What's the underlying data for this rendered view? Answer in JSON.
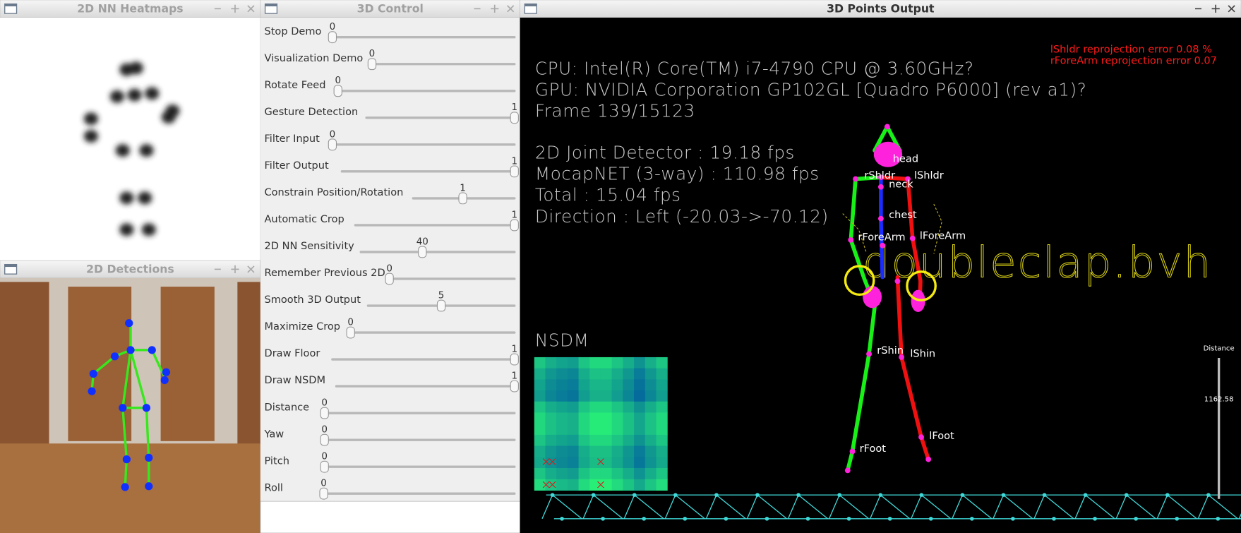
{
  "windows": {
    "heatmaps": {
      "title": "2D NN Heatmaps"
    },
    "detections": {
      "title": "2D Detections"
    },
    "control": {
      "title": "3D Control",
      "sliders": [
        {
          "label": "Stop Demo",
          "value": 0
        },
        {
          "label": "Visualization Demo",
          "value": 0
        },
        {
          "label": "Rotate Feed",
          "value": 0
        },
        {
          "label": "Gesture Detection",
          "value": 1
        },
        {
          "label": "Filter Input",
          "value": 0
        },
        {
          "label": "Filter Output",
          "value": 1
        },
        {
          "label": "Constrain Position/Rotation",
          "value": 1
        },
        {
          "label": "Automatic Crop",
          "value": 1
        },
        {
          "label": "2D NN Sensitivity",
          "value": 40
        },
        {
          "label": "Remember Previous 2D",
          "value": 0
        },
        {
          "label": "Smooth 3D Output",
          "value": 5
        },
        {
          "label": "Maximize Crop",
          "value": 0
        },
        {
          "label": "Draw Floor",
          "value": 1
        },
        {
          "label": "Draw NSDM",
          "value": 1
        },
        {
          "label": "Distance",
          "value": 0
        },
        {
          "label": "Yaw",
          "value": 0
        },
        {
          "label": "Pitch",
          "value": 0
        },
        {
          "label": "Roll",
          "value": 0
        }
      ]
    },
    "output": {
      "title": "3D Points Output",
      "info": [
        "CPU: Intel(R) Core(TM) i7-4790 CPU @ 3.60GHz?",
        "GPU: NVIDIA Corporation GP102GL [Quadro P6000] (rev a1)?",
        "Frame 139/15123"
      ],
      "stats": [
        "2D Joint Detector : 19.18 fps",
        "MocapNET (3-way) : 110.98 fps",
        "Total : 15.04 fps",
        "Direction : Left (-20.03->-70.12)"
      ],
      "errors": [
        "lShldr reprojection error 0.08 %",
        "rForeArm reprojection error 0.07"
      ],
      "file": "doubleclap.bvh",
      "nsdm_label": "NSDM",
      "joints": [
        "head",
        "rShldr",
        "lShldr",
        "neck",
        "chest",
        "rForeArm",
        "lForeArm",
        "rShin",
        "lShin",
        "lFoot",
        "rFoot"
      ],
      "distance_label": "Distance",
      "distance_value": 1162.58
    }
  }
}
